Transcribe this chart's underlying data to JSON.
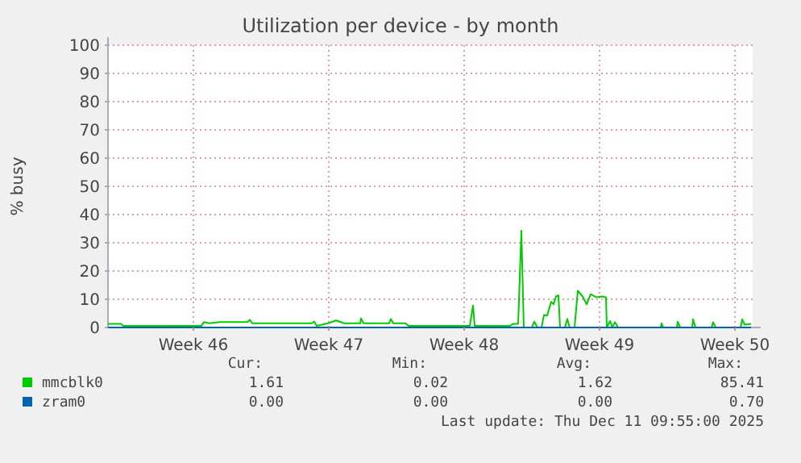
{
  "chart_data": {
    "type": "line",
    "title": "Utilization per device - by month",
    "ylabel": "% busy",
    "xlim": [
      "2025-11-09T02:00",
      "2025-12-12T10:00"
    ],
    "xticks": [
      {
        "value": "2025-11-13T12:00",
        "label": "Week 46"
      },
      {
        "value": "2025-11-20T12:00",
        "label": "Week 47"
      },
      {
        "value": "2025-11-27T12:00",
        "label": "Week 48"
      },
      {
        "value": "2025-12-04T12:00",
        "label": "Week 49"
      },
      {
        "value": "2025-12-11T12:00",
        "label": "Week 50"
      }
    ],
    "ylim": [
      0,
      100
    ],
    "yticks": [
      0,
      10,
      20,
      30,
      40,
      50,
      60,
      70,
      80,
      90,
      100
    ],
    "grid": true,
    "legend": "bottom left",
    "series": [
      {
        "name": "mmcblk0",
        "color": "#00cc00",
        "x": [
          "2025-11-09T02:00",
          "2025-11-09T18:00",
          "2025-11-09T21:00",
          "2025-11-13T22:00",
          "2025-11-14T01:00",
          "2025-11-14T08:00",
          "2025-11-14T21:00",
          "2025-11-16T07:00",
          "2025-11-16T10:00",
          "2025-11-16T13:00",
          "2025-11-19T15:00",
          "2025-11-19T18:00",
          "2025-11-19T21:00",
          "2025-11-20T11:00",
          "2025-11-20T21:00",
          "2025-11-21T07:00",
          "2025-11-22T03:00",
          "2025-11-22T04:00",
          "2025-11-22T07:00",
          "2025-11-23T15:00",
          "2025-11-23T17:00",
          "2025-11-23T20:00",
          "2025-11-24T11:00",
          "2025-11-24T15:00",
          "2025-11-27T19:00",
          "2025-11-27T23:00",
          "2025-11-28T01:00",
          "2025-11-29T21:00",
          "2025-11-30T01:00",
          "2025-11-30T07:00",
          "2025-11-30T11:00",
          "2025-11-30T14:00",
          "2025-12-01T00:00",
          "2025-12-01T03:00",
          "2025-12-01T07:00",
          "2025-12-01T12:00",
          "2025-12-01T15:00",
          "2025-12-01T19:00",
          "2025-12-01T21:00",
          "2025-12-02T00:00",
          "2025-12-02T03:00",
          "2025-12-02T06:00",
          "2025-12-02T09:00",
          "2025-12-02T11:00",
          "2025-12-02T17:00",
          "2025-12-02T20:00",
          "2025-12-02T23:00",
          "2025-12-03T05:00",
          "2025-12-03T09:00",
          "2025-12-03T15:00",
          "2025-12-03T20:00",
          "2025-12-04T01:00",
          "2025-12-04T08:00",
          "2025-12-04T15:00",
          "2025-12-04T20:00",
          "2025-12-04T21:00",
          "2025-12-05T01:00",
          "2025-12-05T04:00",
          "2025-12-05T07:00",
          "2025-12-05T11:00",
          "2025-12-07T16:00",
          "2025-12-07T17:00",
          "2025-12-07T19:00",
          "2025-12-08T12:00",
          "2025-12-08T13:00",
          "2025-12-08T16:00",
          "2025-12-09T07:00",
          "2025-12-09T08:00",
          "2025-12-09T11:00",
          "2025-12-10T07:00",
          "2025-12-10T09:00",
          "2025-12-10T12:00",
          "2025-12-11T19:00",
          "2025-12-11T21:00",
          "2025-12-12T00:00",
          "2025-12-12T08:00"
        ],
        "values": [
          1.3,
          1.3,
          0.6,
          0.6,
          1.9,
          1.5,
          1.9,
          1.9,
          2.7,
          1.5,
          1.5,
          2.1,
          0.6,
          1.5,
          2.5,
          1.5,
          1.5,
          3.2,
          1.5,
          1.5,
          3.0,
          1.5,
          1.5,
          0.6,
          0.6,
          7.8,
          0.6,
          0.6,
          1.3,
          1.3,
          34.3,
          0,
          0,
          2.1,
          0,
          0,
          4.4,
          4.2,
          6.3,
          9.1,
          8.2,
          11,
          11.4,
          0,
          0,
          3,
          0,
          0,
          13,
          11,
          8.2,
          11.8,
          10.7,
          11,
          10.7,
          0,
          2.3,
          0,
          1.9,
          0,
          0,
          1.5,
          0,
          0,
          2.1,
          0,
          0,
          2.9,
          0,
          0,
          1.9,
          0,
          0,
          2.9,
          1,
          1.3
        ]
      },
      {
        "name": "zram0",
        "color": "#0066b3",
        "x": [
          "2025-11-09T02:00",
          "2025-12-12T08:00"
        ],
        "values": [
          0,
          0
        ]
      }
    ],
    "annotations": [
      "Cur:",
      "Min:",
      "Avg:",
      "Max:",
      "1.61",
      "0.02",
      "1.62",
      "85.41",
      "0.00",
      "0.00",
      "0.00",
      "0.70",
      "Last update: Thu Dec 11 09:55:00 2025"
    ]
  }
}
